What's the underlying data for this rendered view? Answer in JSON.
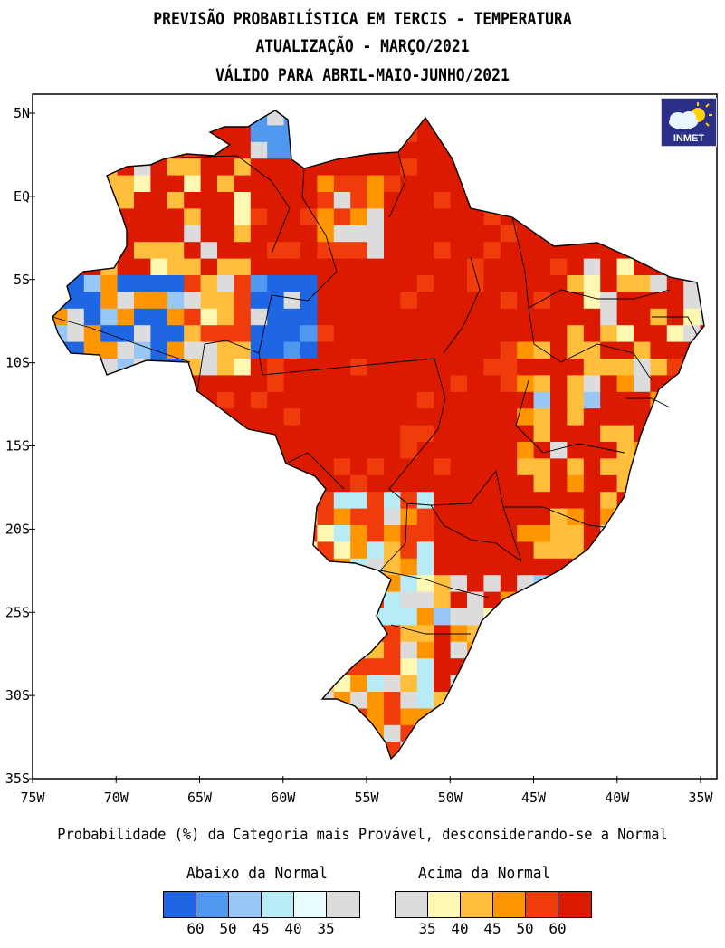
{
  "title": {
    "line1": "PREVISÃO PROBABILÍSTICA EM TERCIS - TEMPERATURA",
    "line2": "ATUALIZAÇÃO - MARÇO/2021",
    "line3": "VÁLIDO PARA ABRIL-MAIO-JUNHO/2021"
  },
  "logo": {
    "text": "INMET",
    "icon": "cloud-sun-icon"
  },
  "axes": {
    "lat_labels": [
      "5N",
      "EQ",
      "5S",
      "10S",
      "15S",
      "20S",
      "25S",
      "30S",
      "35S"
    ],
    "lon_labels": [
      "75W",
      "70W",
      "65W",
      "60W",
      "55W",
      "50W",
      "45W",
      "40W",
      "35W"
    ],
    "lat_range": [
      5,
      -35
    ],
    "lon_range": [
      -75,
      -35
    ]
  },
  "caption": "Probabilidade (%) da Categoria mais Provável, desconsiderando-se a Normal",
  "legend": {
    "below": {
      "title": "Abaixo da Normal",
      "colors": [
        "#1f66e5",
        "#4f97ef",
        "#98c7f5",
        "#b7ecf7",
        "#e6fcfd",
        "#dcdcdc"
      ],
      "values": [
        "60",
        "50",
        "45",
        "40",
        "35"
      ]
    },
    "above": {
      "title": "Acima da Normal",
      "colors": [
        "#dcdcdc",
        "#fff8b2",
        "#ffbe3c",
        "#ff9600",
        "#f03c0a",
        "#dc1a00"
      ],
      "values": [
        "35",
        "40",
        "45",
        "50",
        "60"
      ]
    }
  },
  "colors": {
    "dominant": "#dc1a00",
    "frame": "#000000"
  }
}
